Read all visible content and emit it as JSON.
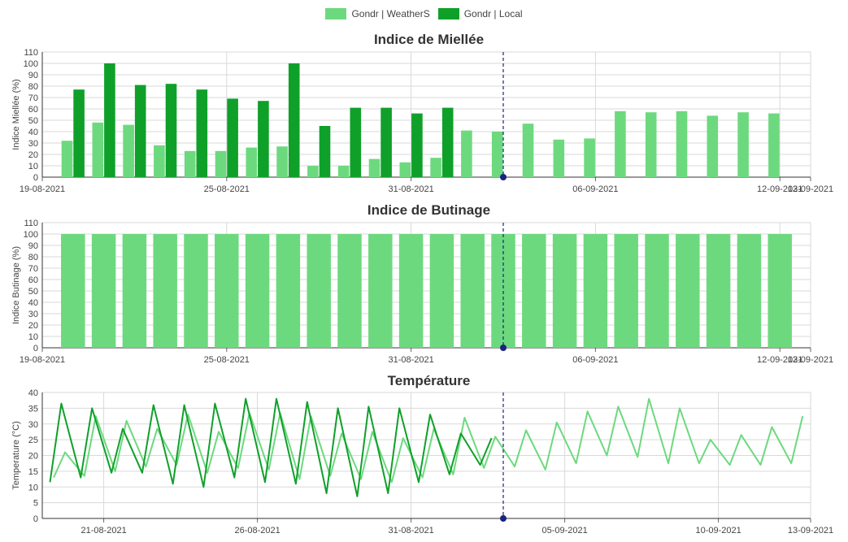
{
  "legend": {
    "items": [
      {
        "label": "Gondr | WeatherS",
        "color": "#6dd97e"
      },
      {
        "label": "Gondr | Local",
        "color": "#0fa02a"
      }
    ]
  },
  "colors": {
    "weathers": "#6dd97e",
    "local": "#0fa02a",
    "today_line": "#1a237e"
  },
  "today_marker": "03-09-2021",
  "chart_data": [
    {
      "type": "bar",
      "title": "Indice de Miellée",
      "ylabel": "Indice Miellée (%)",
      "ylim": [
        0,
        110
      ],
      "yticks": [
        0,
        10,
        20,
        30,
        40,
        50,
        60,
        70,
        80,
        90,
        100,
        110
      ],
      "x_start": "19-08-2021",
      "x_end": "13-09-2021",
      "x_ticks": [
        "19-08-2021",
        "25-08-2021",
        "31-08-2021",
        "06-09-2021",
        "12-09-2021",
        "13-09-2021"
      ],
      "dates": [
        "20-08-2021",
        "21-08-2021",
        "22-08-2021",
        "23-08-2021",
        "24-08-2021",
        "25-08-2021",
        "26-08-2021",
        "27-08-2021",
        "28-08-2021",
        "29-08-2021",
        "30-08-2021",
        "31-08-2021",
        "01-09-2021",
        "02-09-2021",
        "03-09-2021",
        "04-09-2021",
        "05-09-2021",
        "06-09-2021",
        "07-09-2021",
        "08-09-2021",
        "09-09-2021",
        "10-09-2021",
        "11-09-2021",
        "12-09-2021"
      ],
      "series": [
        {
          "name": "Gondr | WeatherS",
          "values": [
            32,
            48,
            46,
            28,
            23,
            23,
            26,
            27,
            10,
            10,
            16,
            13,
            17,
            41,
            40,
            47,
            33,
            34,
            58,
            57,
            58,
            54,
            57,
            56
          ]
        },
        {
          "name": "Gondr | Local",
          "values": [
            77,
            100,
            81,
            82,
            77,
            69,
            67,
            100,
            45,
            61,
            61,
            56,
            61,
            null,
            null,
            null,
            null,
            null,
            null,
            null,
            null,
            null,
            null,
            null
          ]
        }
      ]
    },
    {
      "type": "bar",
      "title": "Indice de Butinage",
      "ylabel": "Indice Butinage (%)",
      "ylim": [
        0,
        110
      ],
      "yticks": [
        0,
        10,
        20,
        30,
        40,
        50,
        60,
        70,
        80,
        90,
        100,
        110
      ],
      "x_start": "19-08-2021",
      "x_end": "13-09-2021",
      "x_ticks": [
        "19-08-2021",
        "25-08-2021",
        "31-08-2021",
        "06-09-2021",
        "12-09-2021",
        "13-09-2021"
      ],
      "dates": [
        "20-08-2021",
        "21-08-2021",
        "22-08-2021",
        "23-08-2021",
        "24-08-2021",
        "25-08-2021",
        "26-08-2021",
        "27-08-2021",
        "28-08-2021",
        "29-08-2021",
        "30-08-2021",
        "31-08-2021",
        "01-09-2021",
        "02-09-2021",
        "03-09-2021",
        "04-09-2021",
        "05-09-2021",
        "06-09-2021",
        "07-09-2021",
        "08-09-2021",
        "09-09-2021",
        "10-09-2021",
        "11-09-2021",
        "12-09-2021"
      ],
      "series": [
        {
          "name": "Gondr | WeatherS",
          "values": [
            100,
            100,
            100,
            100,
            100,
            100,
            100,
            100,
            100,
            100,
            100,
            100,
            100,
            100,
            100,
            100,
            100,
            100,
            100,
            100,
            100,
            100,
            100,
            100
          ]
        }
      ]
    },
    {
      "type": "line",
      "title": "Température",
      "ylabel": "Temperature (°C)",
      "ylim": [
        0,
        40
      ],
      "yticks": [
        0,
        5,
        10,
        15,
        20,
        25,
        30,
        35,
        40
      ],
      "x_start": "19-08-2021",
      "x_end": "13-09-2021",
      "x_ticks": [
        "21-08-2021",
        "26-08-2021",
        "31-08-2021",
        "05-09-2021",
        "10-09-2021",
        "13-09-2021"
      ],
      "series": [
        {
          "name": "Gondr | WeatherS",
          "daily": [
            {
              "date": "19-08-2021",
              "min": 13,
              "max": 21
            },
            {
              "date": "20-08-2021",
              "min": 13.5,
              "max": 32.5
            },
            {
              "date": "21-08-2021",
              "min": 15,
              "max": 31
            },
            {
              "date": "22-08-2021",
              "min": 16.5,
              "max": 28.5
            },
            {
              "date": "23-08-2021",
              "min": 17,
              "max": 33
            },
            {
              "date": "24-08-2021",
              "min": 14.5,
              "max": 27.5
            },
            {
              "date": "25-08-2021",
              "min": 16,
              "max": 33.5
            },
            {
              "date": "26-08-2021",
              "min": 15.5,
              "max": 33.5
            },
            {
              "date": "27-08-2021",
              "min": 12.5,
              "max": 32.5
            },
            {
              "date": "28-08-2021",
              "min": 13.5,
              "max": 27
            },
            {
              "date": "29-08-2021",
              "min": 12.5,
              "max": 27.5
            },
            {
              "date": "30-08-2021",
              "min": 11.5,
              "max": 25.5
            },
            {
              "date": "31-08-2021",
              "min": 13,
              "max": 28.5
            },
            {
              "date": "01-09-2021",
              "min": 14,
              "max": 32
            },
            {
              "date": "02-09-2021",
              "min": 16,
              "max": 26
            },
            {
              "date": "03-09-2021",
              "min": 16.5,
              "max": 28
            },
            {
              "date": "04-09-2021",
              "min": 15.5,
              "max": 30.5
            },
            {
              "date": "05-09-2021",
              "min": 17.5,
              "max": 34
            },
            {
              "date": "06-09-2021",
              "min": 20,
              "max": 35.5
            },
            {
              "date": "07-09-2021",
              "min": 19.5,
              "max": 38
            },
            {
              "date": "08-09-2021",
              "min": 17.5,
              "max": 35
            },
            {
              "date": "09-09-2021",
              "min": 17.5,
              "max": 25
            },
            {
              "date": "10-09-2021",
              "min": 17,
              "max": 26.5
            },
            {
              "date": "11-09-2021",
              "min": 17,
              "max": 29
            },
            {
              "date": "12-09-2021",
              "min": 17.5,
              "max": 32.5
            },
            {
              "date": "13-09-2021",
              "min": 15.5,
              "max": 29
            }
          ]
        },
        {
          "name": "Gondr | Local",
          "daily": [
            {
              "date": "19-08-2021",
              "min": 11.5,
              "max": 36.5
            },
            {
              "date": "20-08-2021",
              "min": 13,
              "max": 35
            },
            {
              "date": "21-08-2021",
              "min": 14.5,
              "max": 28.5
            },
            {
              "date": "22-08-2021",
              "min": 14.5,
              "max": 36
            },
            {
              "date": "23-08-2021",
              "min": 11,
              "max": 36
            },
            {
              "date": "24-08-2021",
              "min": 10,
              "max": 36.5
            },
            {
              "date": "25-08-2021",
              "min": 13,
              "max": 38
            },
            {
              "date": "26-08-2021",
              "min": 11.5,
              "max": 38
            },
            {
              "date": "27-08-2021",
              "min": 11,
              "max": 37
            },
            {
              "date": "28-08-2021",
              "min": 8,
              "max": 35
            },
            {
              "date": "29-08-2021",
              "min": 7,
              "max": 35.5
            },
            {
              "date": "30-08-2021",
              "min": 8,
              "max": 35
            },
            {
              "date": "31-08-2021",
              "min": 11.5,
              "max": 33
            },
            {
              "date": "01-09-2021",
              "min": 14,
              "max": 27
            },
            {
              "date": "02-09-2021",
              "min": 17,
              "max": 25.5
            }
          ]
        }
      ]
    }
  ]
}
